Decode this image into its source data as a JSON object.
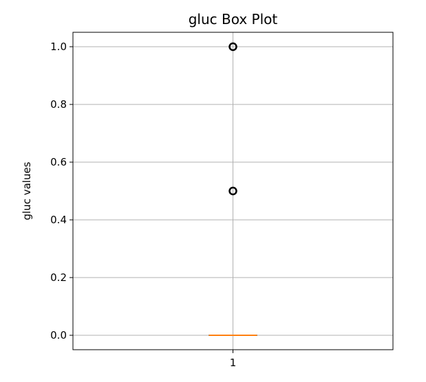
{
  "chart_data": {
    "type": "box",
    "title": "gluc Box Plot",
    "xlabel": "",
    "ylabel": "gluc values",
    "categories": [
      "1"
    ],
    "ylim": [
      -0.05,
      1.05
    ],
    "yticks": [
      0.0,
      0.2,
      0.4,
      0.6,
      0.8,
      1.0
    ],
    "ytick_labels": [
      "0.0",
      "0.2",
      "0.4",
      "0.6",
      "0.8",
      "1.0"
    ],
    "grid": true,
    "boxes": [
      {
        "category": "1",
        "q1": 0.0,
        "median": 0.0,
        "q3": 0.0,
        "whisker_low": 0.0,
        "whisker_high": 0.0,
        "outliers": [
          0.5,
          1.0
        ]
      }
    ],
    "colors": {
      "median": "#ff7f0e",
      "box": "#000000",
      "grid": "#b0b0b0",
      "outlier": "#000000"
    }
  }
}
